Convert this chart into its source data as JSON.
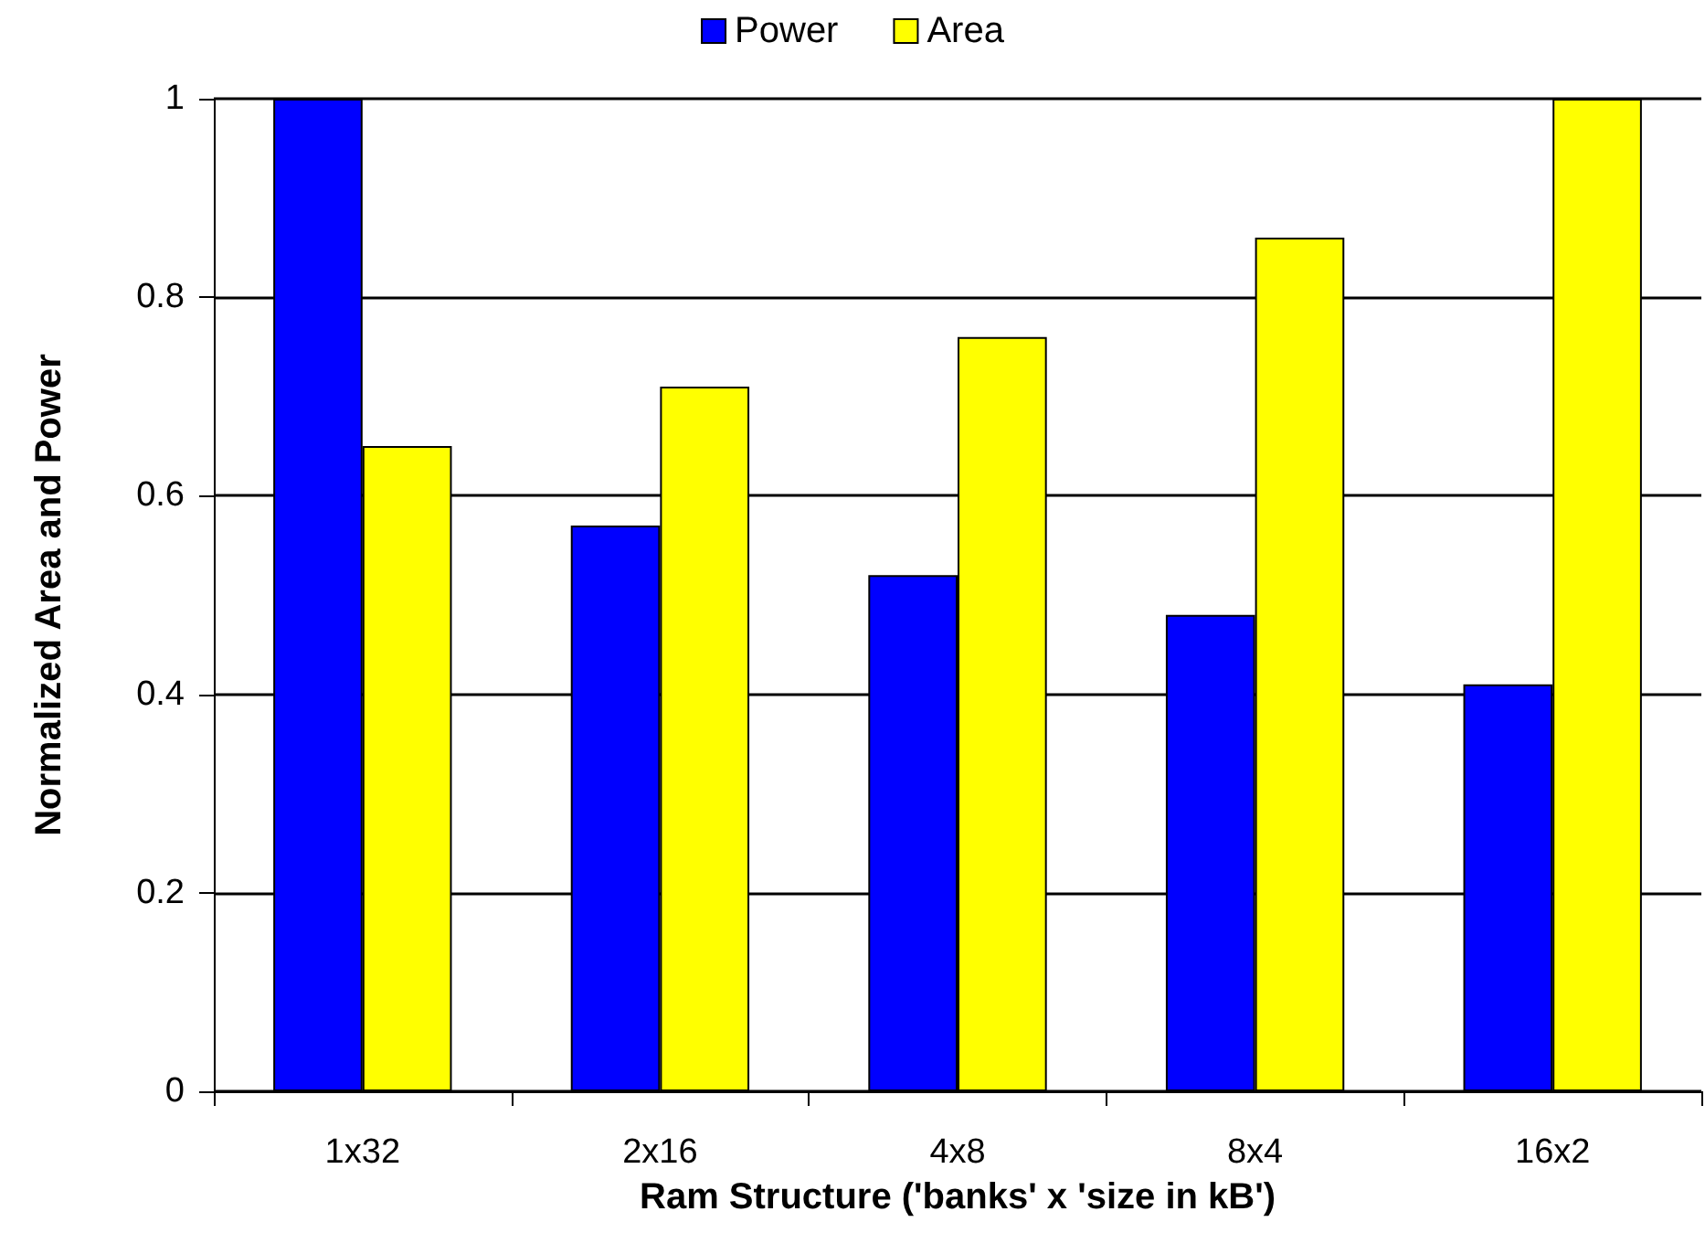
{
  "chart_data": {
    "type": "bar",
    "xlabel": "Ram Structure ('banks' x 'size in kB')",
    "ylabel": "Normalized Area and Power",
    "categories": [
      "1x32",
      "2x16",
      "4x8",
      "8x4",
      "16x2"
    ],
    "series": [
      {
        "name": "Power",
        "color": "#0000ff",
        "values": [
          1.0,
          0.57,
          0.52,
          0.48,
          0.41
        ]
      },
      {
        "name": "Area",
        "color": "#ffff00",
        "values": [
          0.65,
          0.71,
          0.76,
          0.86,
          1.0
        ]
      }
    ],
    "ylim": [
      0,
      1
    ],
    "yticks": [
      0,
      0.2,
      0.4,
      0.6,
      0.8,
      1
    ],
    "grid": "y",
    "legend": "top"
  }
}
